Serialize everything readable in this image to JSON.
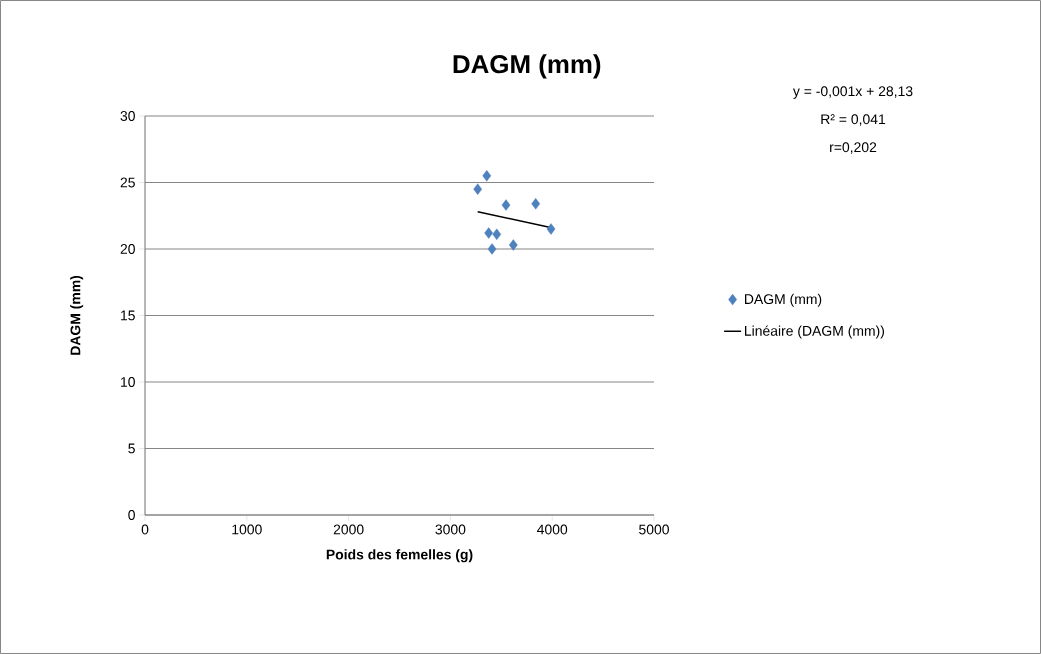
{
  "chart_data": {
    "type": "scatter",
    "title": "DAGM (mm)",
    "xlabel": "Poids des femelles (g)",
    "ylabel": "DAGM (mm)",
    "annotations": [
      "y = -0,001x + 28,13",
      "R² = 0,041",
      "r=0,202"
    ],
    "series": [
      {
        "name": "DAGM (mm)",
        "color": "#4f81bd",
        "marker": "diamond",
        "x": [
          3357,
          3268,
          3546,
          3838,
          3988,
          3376,
          3455,
          3409,
          3618
        ],
        "values": [
          25.5,
          24.5,
          23.3,
          23.4,
          21.5,
          21.2,
          21.1,
          20.0,
          20.3
        ]
      },
      {
        "name": "Linéaire (DAGM (mm))",
        "type": "line",
        "color": "#000000",
        "marker": "none",
        "line_style": "solid",
        "x": [
          3268,
          3995
        ],
        "values": [
          22.8,
          21.6
        ]
      }
    ],
    "xlim": [
      0,
      5000
    ],
    "xticks": [
      0,
      1000,
      2000,
      3000,
      4000,
      5000
    ],
    "ylim": [
      0,
      30
    ],
    "yticks": [
      0,
      5,
      10,
      15,
      20,
      25,
      30
    ],
    "grid": "y",
    "legend": "right"
  }
}
